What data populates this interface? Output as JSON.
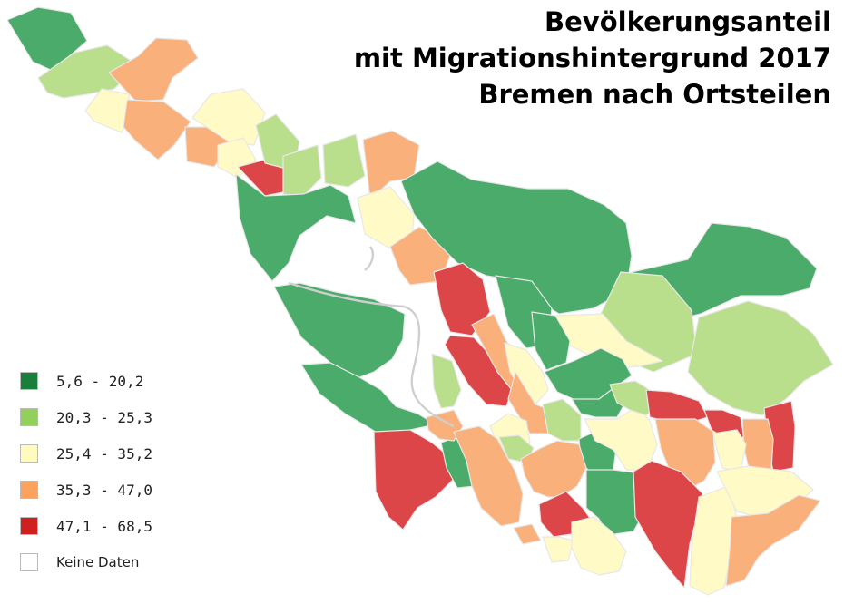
{
  "title": {
    "line1": "Bevölkerungsanteil",
    "line2": "mit Migrationshintergrund 2017",
    "line3": "Bremen nach Ortsteilen"
  },
  "legend": [
    {
      "label": "5,6 - 20,2",
      "class": "c1",
      "color": "#1a7f3a"
    },
    {
      "label": "20,3 - 25,3",
      "class": "c2",
      "color": "#91d15a"
    },
    {
      "label": "25,4 - 35,2",
      "class": "c3",
      "color": "#fffbbf"
    },
    {
      "label": "35,3 - 47,0",
      "class": "c4",
      "color": "#fca25c"
    },
    {
      "label": "47,1 - 68,5",
      "class": "c5",
      "color": "#cf1f1f"
    },
    {
      "label": "Keine Daten",
      "class": "none",
      "color": "#ffffff"
    }
  ],
  "map_colors": {
    "c1": "#4aab6b",
    "c2": "#b9de8c",
    "c3": "#fffac6",
    "c4": "#f9b07a",
    "c5": "#dd4649",
    "none": "#ffffff"
  }
}
